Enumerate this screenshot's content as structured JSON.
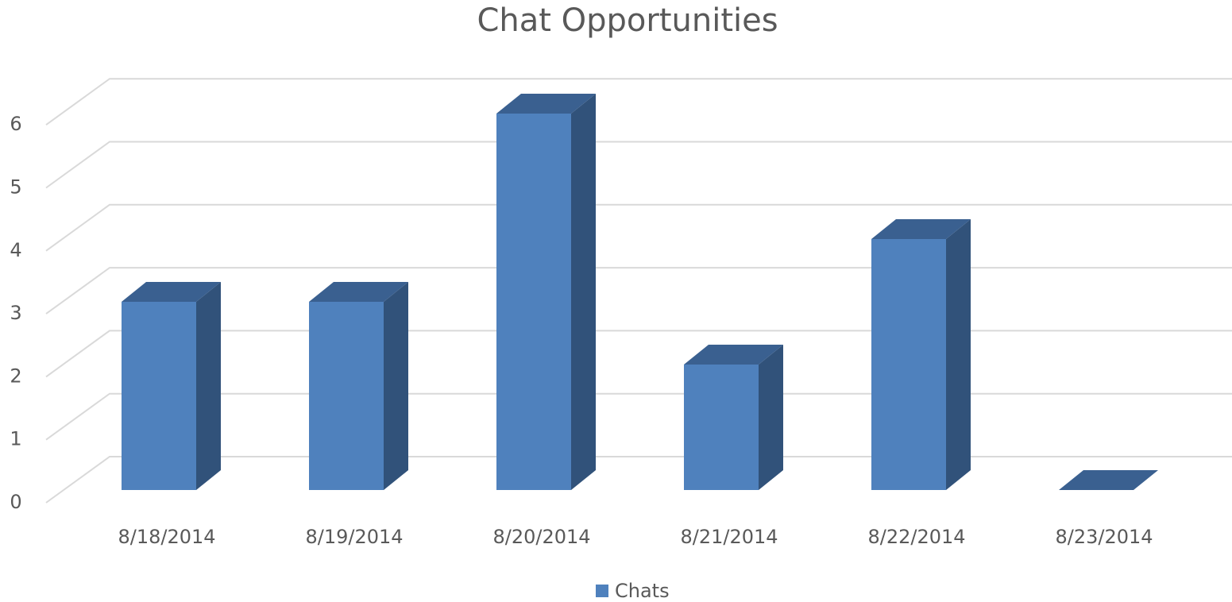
{
  "chart_data": {
    "type": "bar",
    "title": "Chat Opportunities",
    "categories": [
      "8/18/2014",
      "8/19/2014",
      "8/20/2014",
      "8/21/2014",
      "8/22/2014",
      "8/23/2014"
    ],
    "series": [
      {
        "name": "Chats",
        "color": "#4f81bd",
        "values": [
          3,
          3,
          6,
          2,
          4,
          0
        ]
      }
    ],
    "ylim": [
      0,
      6
    ],
    "yticks": [
      0,
      1,
      2,
      3,
      4,
      5,
      6
    ],
    "grid": true,
    "legend": "bottom"
  }
}
